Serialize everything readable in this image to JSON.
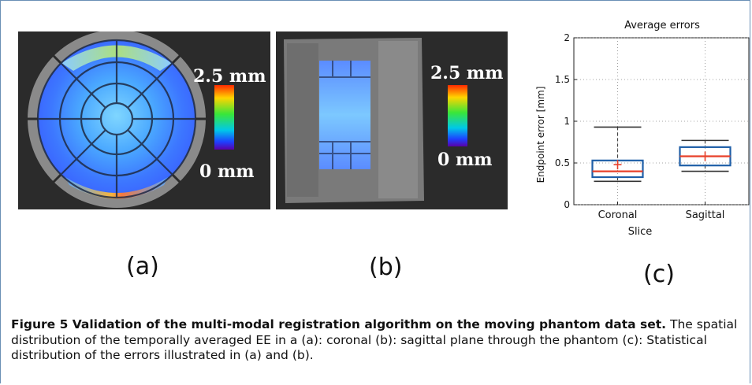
{
  "figure": {
    "panels": [
      {
        "label": "(a)",
        "colorbar_max": "2.5 mm",
        "colorbar_min": "0 mm"
      },
      {
        "label": "(b)",
        "colorbar_max": "2.5 mm",
        "colorbar_min": "0 mm"
      },
      {
        "label": "(c)"
      }
    ],
    "caption_bold": "Figure 5 Validation of the multi-modal registration algorithm on the moving phantom data set.",
    "caption_text": " The spatial distribution of the temporally averaged EE in a (a): coronal (b): sagittal plane through the phantom (c): Statistical distribution of the errors illustrated in (a) and (b)."
  },
  "chart_data": {
    "type": "box",
    "title": "Average errors",
    "xlabel": "Slice",
    "ylabel": "Endpoint error [mm]",
    "ylim": [
      0,
      2
    ],
    "yticks": [
      "0",
      "0.5",
      "1",
      "1.5",
      "2"
    ],
    "categories": [
      "Coronal",
      "Sagittal"
    ],
    "boxes": [
      {
        "name": "Coronal",
        "whisker_low": 0.28,
        "q1": 0.33,
        "median": 0.4,
        "q3": 0.53,
        "whisker_high": 0.93,
        "mean": 0.48
      },
      {
        "name": "Sagittal",
        "whisker_low": 0.4,
        "q1": 0.47,
        "median": 0.58,
        "q3": 0.69,
        "whisker_high": 0.77,
        "mean": 0.58
      }
    ],
    "grid": true,
    "box_color": "#1f5fa8",
    "median_color": "#e8402a"
  }
}
